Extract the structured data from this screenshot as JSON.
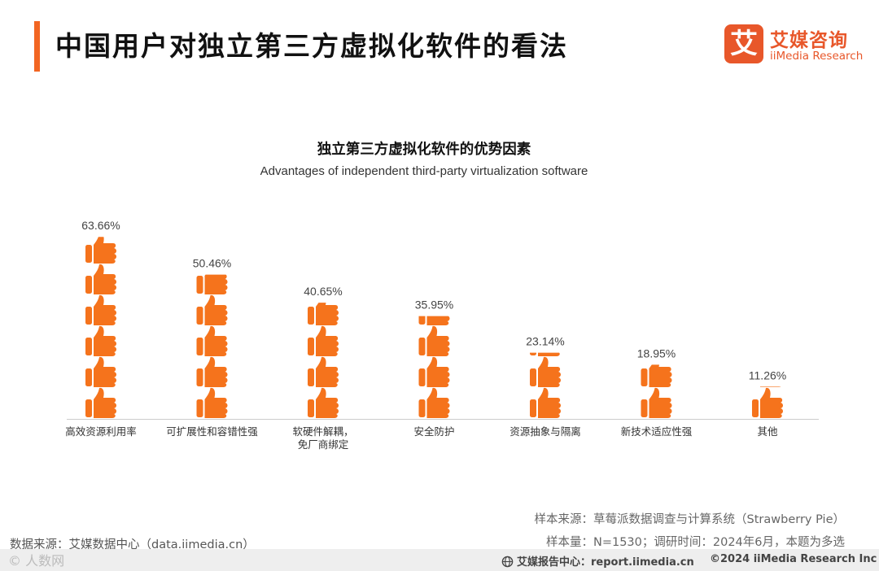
{
  "header": {
    "title": "中国用户对独立第三方虚拟化软件的看法",
    "accent_color": "#f26522"
  },
  "logo": {
    "mark": "艾",
    "name_cn": "艾媒咨询",
    "name_en": "iiMedia Research",
    "color": "#e8572a"
  },
  "chart_data": {
    "type": "bar",
    "title": "独立第三方虚拟化软件的优势因素",
    "subtitle": "Advantages of independent third-party virtualization software",
    "unit": "%",
    "bar_style": "stacked thumbs-up pictogram",
    "bar_color": "#f5731c",
    "categories": [
      [
        "高效资源利用率"
      ],
      [
        "可扩展性和容错性强"
      ],
      [
        "软硬件解耦，",
        "免厂商绑定"
      ],
      [
        "安全防护"
      ],
      [
        "资源抽象与隔离"
      ],
      [
        "新技术适应性强"
      ],
      [
        "其他"
      ]
    ],
    "values": [
      63.66,
      50.46,
      40.65,
      35.95,
      23.14,
      18.95,
      11.26
    ],
    "labels": [
      "63.66%",
      "50.46%",
      "40.65%",
      "35.95%",
      "23.14%",
      "18.95%",
      "11.26%"
    ],
    "ylim": [
      0,
      66
    ]
  },
  "footer": {
    "source": "数据来源：艾媒数据中心（data.iimedia.cn）",
    "sample_source": "样本来源：草莓派数据调查与计算系统（Strawberry Pie）",
    "sample_info": "样本量：N=1530；调研时间：2024年6月，本题为多选",
    "report_center": "艾媒报告中心：report.iimedia.cn",
    "copyright": "©2024  iiMedia Research  Inc",
    "watermark": "© 人数网"
  }
}
